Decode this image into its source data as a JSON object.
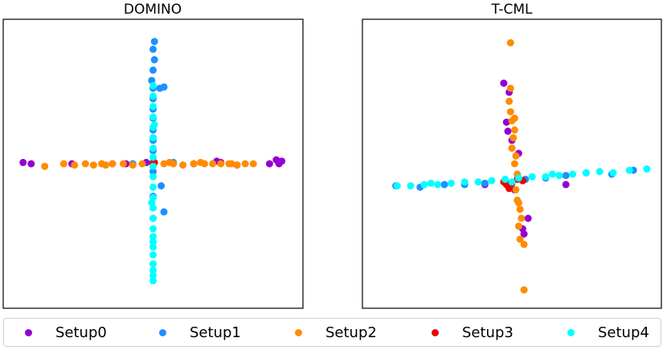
{
  "chart_data": [
    {
      "type": "scatter",
      "title": "DOMINO",
      "xlabel": "",
      "ylabel": "",
      "xlim": [
        -1,
        1
      ],
      "ylim": [
        -1,
        1
      ],
      "axes_ticks": false,
      "grid": false,
      "series": [
        {
          "name": "Setup0",
          "color": "#9400d3",
          "points": [
            [
              -0.96,
              0.01
            ],
            [
              -0.9,
              0.0
            ],
            [
              0.91,
              0.03
            ],
            [
              0.95,
              0.02
            ],
            [
              0.93,
              0.0
            ],
            [
              0.86,
              0.0
            ],
            [
              -0.6,
              0.0
            ],
            [
              -0.3,
              0.0
            ],
            [
              0.0,
              0.01
            ],
            [
              0.3,
              0.0
            ],
            [
              0.5,
              0.01
            ],
            [
              0.47,
              0.02
            ],
            [
              0.62,
              -0.01
            ],
            [
              -0.2,
              0.0
            ],
            [
              -0.05,
              0.01
            ]
          ]
        },
        {
          "name": "Setup1",
          "color": "#1e90ff",
          "points": [
            [
              0.01,
              0.94
            ],
            [
              0.0,
              0.88
            ],
            [
              0.01,
              0.8
            ],
            [
              0.0,
              0.72
            ],
            [
              -0.01,
              0.64
            ],
            [
              0.0,
              0.58
            ],
            [
              0.08,
              0.59
            ],
            [
              0.0,
              0.5
            ],
            [
              0.0,
              0.42
            ],
            [
              0.0,
              0.35
            ],
            [
              0.0,
              0.26
            ],
            [
              0.0,
              0.18
            ],
            [
              0.0,
              0.1
            ],
            [
              0.0,
              -0.06
            ],
            [
              0.06,
              -0.17
            ],
            [
              0.0,
              -0.25
            ],
            [
              0.08,
              -0.37
            ],
            [
              0.0,
              -0.42
            ],
            [
              0.05,
              0.58
            ],
            [
              0.0,
              0.2
            ],
            [
              -0.15,
              0.0
            ],
            [
              0.15,
              0.01
            ]
          ]
        },
        {
          "name": "Setup2",
          "color": "#ff8c00",
          "points": [
            [
              -0.8,
              -0.02
            ],
            [
              -0.66,
              0.0
            ],
            [
              -0.58,
              -0.01
            ],
            [
              -0.5,
              0.0
            ],
            [
              -0.44,
              -0.01
            ],
            [
              -0.38,
              0.0
            ],
            [
              -0.3,
              0.0
            ],
            [
              -0.22,
              0.0
            ],
            [
              -0.15,
              -0.01
            ],
            [
              -0.08,
              0.0
            ],
            [
              0.0,
              0.0
            ],
            [
              0.08,
              0.0
            ],
            [
              0.15,
              0.0
            ],
            [
              0.22,
              -0.01
            ],
            [
              0.3,
              0.0
            ],
            [
              0.38,
              0.0
            ],
            [
              0.44,
              0.0
            ],
            [
              0.5,
              0.0
            ],
            [
              0.56,
              0.0
            ],
            [
              0.62,
              -0.01
            ],
            [
              0.68,
              0.0
            ],
            [
              0.74,
              0.0
            ],
            [
              -0.35,
              -0.01
            ],
            [
              0.12,
              0.01
            ],
            [
              0.35,
              0.01
            ],
            [
              0.58,
              0.0
            ]
          ]
        },
        {
          "name": "Setup3",
          "color": "#ee0000",
          "points": [
            [
              0.0,
              0.0
            ],
            [
              0.01,
              0.01
            ]
          ]
        },
        {
          "name": "Setup4",
          "color": "#00ffff",
          "points": [
            [
              0.0,
              0.6
            ],
            [
              0.0,
              0.52
            ],
            [
              0.0,
              0.44
            ],
            [
              0.0,
              0.36
            ],
            [
              0.0,
              0.28
            ],
            [
              0.0,
              0.2
            ],
            [
              0.0,
              0.12
            ],
            [
              0.0,
              0.05
            ],
            [
              0.0,
              -0.02
            ],
            [
              0.0,
              -0.1
            ],
            [
              0.0,
              -0.18
            ],
            [
              0.0,
              -0.26
            ],
            [
              0.0,
              -0.34
            ],
            [
              0.0,
              -0.42
            ],
            [
              0.0,
              -0.5
            ],
            [
              0.0,
              -0.56
            ],
            [
              0.0,
              -0.6
            ],
            [
              0.0,
              -0.64
            ],
            [
              0.0,
              -0.7
            ],
            [
              0.0,
              -0.77
            ],
            [
              0.0,
              -0.82
            ],
            [
              0.0,
              -0.86
            ],
            [
              0.0,
              -0.9
            ],
            [
              0.01,
              0.3
            ],
            [
              -0.01,
              -0.3
            ]
          ]
        }
      ]
    },
    {
      "type": "scatter",
      "title": "T-CML",
      "xlabel": "",
      "ylabel": "",
      "xlim": [
        -1,
        1
      ],
      "ylim": [
        -1,
        1
      ],
      "axes_ticks": false,
      "grid": false,
      "series": [
        {
          "name": "Setup0",
          "color": "#9400d3",
          "points": [
            [
              -0.06,
              0.62
            ],
            [
              -0.02,
              0.55
            ],
            [
              -0.04,
              0.32
            ],
            [
              -0.03,
              0.25
            ],
            [
              0.0,
              0.18
            ],
            [
              0.05,
              0.08
            ],
            [
              0.08,
              -0.5
            ],
            [
              0.09,
              -0.54
            ],
            [
              -0.2,
              -0.16
            ],
            [
              0.12,
              -0.42
            ],
            [
              0.4,
              -0.16
            ],
            [
              0.02,
              -0.2
            ]
          ]
        },
        {
          "name": "Setup1",
          "color": "#1e90ff",
          "points": [
            [
              -0.68,
              -0.18
            ],
            [
              -0.5,
              -0.16
            ],
            [
              -0.35,
              -0.16
            ],
            [
              -0.2,
              -0.15
            ],
            [
              -0.05,
              -0.13
            ],
            [
              0.1,
              -0.12
            ],
            [
              0.25,
              -0.11
            ],
            [
              0.4,
              -0.09
            ],
            [
              0.55,
              -0.07
            ],
            [
              0.74,
              -0.08
            ],
            [
              0.9,
              -0.05
            ],
            [
              -0.86,
              -0.17
            ]
          ]
        },
        {
          "name": "Setup2",
          "color": "#ff8c00",
          "points": [
            [
              -0.01,
              0.93
            ],
            [
              -0.01,
              0.58
            ],
            [
              -0.02,
              0.48
            ],
            [
              -0.01,
              0.4
            ],
            [
              0.0,
              0.33
            ],
            [
              0.02,
              0.26
            ],
            [
              0.01,
              0.2
            ],
            [
              0.0,
              0.12
            ],
            [
              0.03,
              0.06
            ],
            [
              0.02,
              0.0
            ],
            [
              0.04,
              -0.08
            ],
            [
              0.03,
              -0.2
            ],
            [
              0.04,
              -0.28
            ],
            [
              0.06,
              -0.35
            ],
            [
              0.07,
              -0.42
            ],
            [
              0.05,
              -0.48
            ],
            [
              0.06,
              -0.58
            ],
            [
              0.09,
              -0.62
            ],
            [
              0.09,
              -0.97
            ],
            [
              0.02,
              0.35
            ],
            [
              0.05,
              -0.3
            ]
          ]
        },
        {
          "name": "Setup3",
          "color": "#ee0000",
          "points": [
            [
              -0.06,
              -0.14
            ],
            [
              -0.04,
              -0.16
            ],
            [
              0.0,
              -0.15
            ],
            [
              0.04,
              -0.12
            ],
            [
              0.08,
              -0.13
            ],
            [
              -0.02,
              -0.19
            ]
          ]
        },
        {
          "name": "Setup4",
          "color": "#00ffff",
          "points": [
            [
              -0.85,
              -0.17
            ],
            [
              -0.75,
              -0.17
            ],
            [
              -0.65,
              -0.16
            ],
            [
              -0.55,
              -0.16
            ],
            [
              -0.45,
              -0.15
            ],
            [
              -0.35,
              -0.14
            ],
            [
              -0.25,
              -0.14
            ],
            [
              -0.15,
              -0.13
            ],
            [
              -0.05,
              -0.12
            ],
            [
              0.05,
              -0.11
            ],
            [
              0.15,
              -0.1
            ],
            [
              0.25,
              -0.1
            ],
            [
              0.35,
              -0.09
            ],
            [
              0.45,
              -0.08
            ],
            [
              0.55,
              -0.07
            ],
            [
              0.65,
              -0.06
            ],
            [
              0.75,
              -0.07
            ],
            [
              0.87,
              -0.05
            ],
            [
              1.0,
              -0.04
            ],
            [
              0.3,
              -0.08
            ],
            [
              -0.6,
              -0.15
            ],
            [
              0.0,
              -0.14
            ]
          ]
        }
      ]
    }
  ],
  "legend": {
    "placement": "bottom",
    "items": [
      {
        "label": "Setup0",
        "color": "#9400d3"
      },
      {
        "label": "Setup1",
        "color": "#1e90ff"
      },
      {
        "label": "Setup2",
        "color": "#ff8c00"
      },
      {
        "label": "Setup3",
        "color": "#ee0000"
      },
      {
        "label": "Setup4",
        "color": "#00ffff"
      }
    ]
  }
}
